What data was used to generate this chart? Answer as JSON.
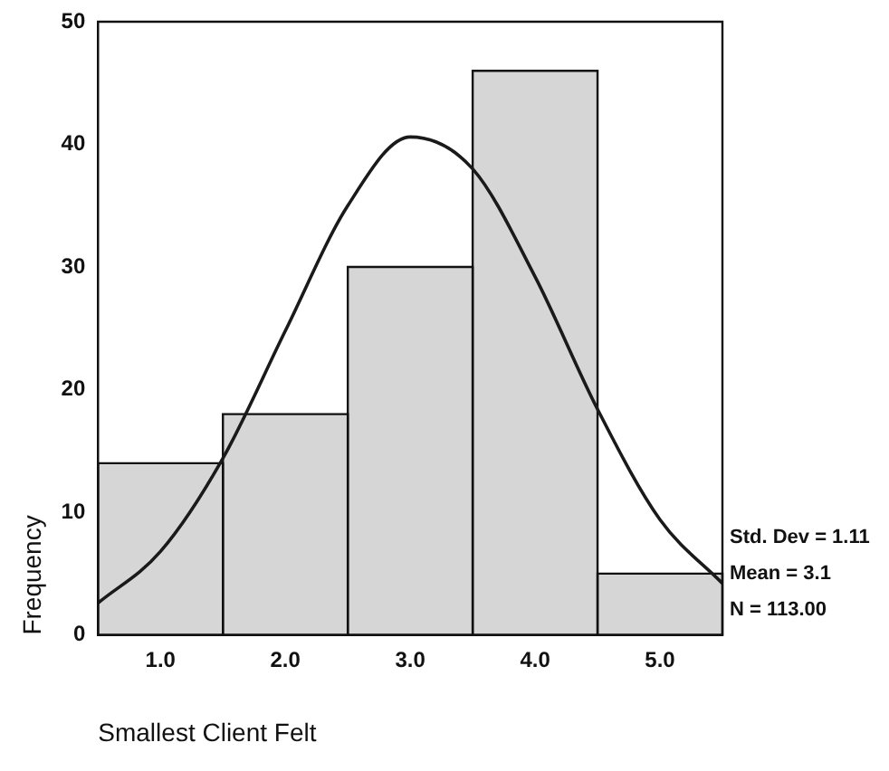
{
  "chart_data": {
    "type": "histogram",
    "xlabel": "Smallest Client Felt",
    "ylabel": "Frequency",
    "bins": [
      0.5,
      1.5,
      2.5,
      3.5,
      4.5,
      5.5
    ],
    "values": [
      14,
      18,
      30,
      46,
      5
    ],
    "color": "#d6d6d6",
    "series": [
      {
        "type": "line",
        "color": "#1a1a1a",
        "x": [
          0.5,
          1.0,
          1.5,
          2.0,
          2.5,
          3.0,
          3.5,
          4.0,
          4.5,
          5.0,
          5.5
        ],
        "values": [
          2.6,
          6.8,
          14.4,
          24.8,
          35,
          40.6,
          38,
          29.2,
          18.4,
          9.4,
          4.2
        ]
      }
    ],
    "xlim": [
      0.5,
      5.5
    ],
    "ylim": [
      0,
      50
    ],
    "xticks": [
      {
        "value": 1,
        "label": "1.0"
      },
      {
        "value": 2,
        "label": "2.0"
      },
      {
        "value": 3,
        "label": "3.0"
      },
      {
        "value": 4,
        "label": "4.0"
      },
      {
        "value": 5,
        "label": "5.0"
      }
    ],
    "yticks": [
      0,
      10,
      20,
      30,
      40,
      50
    ],
    "annotations": [
      "Std. Dev = 1.11",
      "Mean = 3.1",
      "N = 113.00"
    ],
    "grid": false,
    "legend": false,
    "marker": "none",
    "line_style": "solid"
  }
}
